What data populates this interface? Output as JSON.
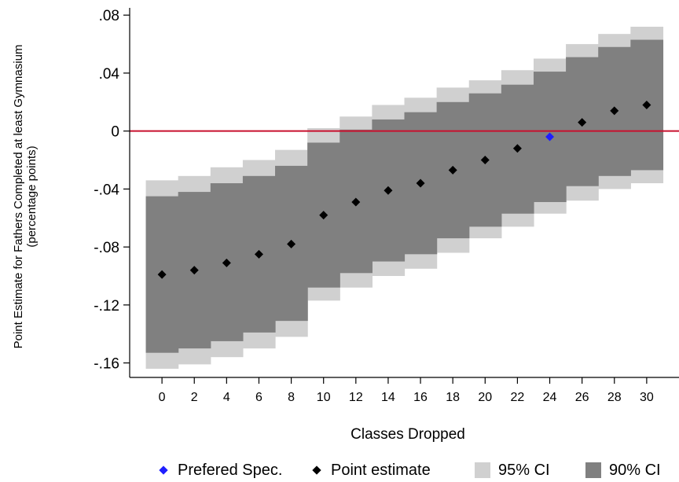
{
  "chart_data": {
    "type": "range_band_scatter",
    "xlabel": "Classes Dropped",
    "ylabel_line1": "Point Estimate for Fathers Completed at least Gymnasium",
    "ylabel_line2": "(percentage points)",
    "x": [
      0,
      2,
      4,
      6,
      8,
      10,
      12,
      14,
      16,
      18,
      20,
      22,
      24,
      26,
      28,
      30
    ],
    "x_ticks": [
      "0",
      "2",
      "4",
      "6",
      "8",
      "10",
      "12",
      "14",
      "16",
      "18",
      "20",
      "22",
      "24",
      "26",
      "28",
      "30"
    ],
    "xlim": [
      -2,
      32
    ],
    "ylim": [
      -0.17,
      0.085
    ],
    "y_ticks": [
      0.08,
      0.04,
      0,
      -0.04,
      -0.08,
      -0.12,
      -0.16
    ],
    "y_tick_labels": [
      ".08",
      ".04",
      "0",
      "-.04",
      "-.08",
      "-.12",
      "-.16"
    ],
    "series": [
      {
        "name": "Point estimate",
        "values": [
          -0.099,
          -0.096,
          -0.091,
          -0.085,
          -0.078,
          -0.058,
          -0.049,
          -0.041,
          -0.036,
          -0.027,
          -0.02,
          -0.012,
          null,
          0.006,
          0.014,
          0.018
        ]
      },
      {
        "name": "Prefered Spec.",
        "points": [
          {
            "x": 24,
            "y": -0.004
          }
        ]
      },
      {
        "name": "95% CI",
        "lower": [
          -0.164,
          -0.161,
          -0.156,
          -0.15,
          -0.142,
          -0.117,
          -0.108,
          -0.1,
          -0.095,
          -0.084,
          -0.074,
          -0.066,
          -0.057,
          -0.048,
          -0.04,
          -0.036
        ],
        "upper": [
          -0.034,
          -0.031,
          -0.025,
          -0.02,
          -0.013,
          0.002,
          0.01,
          0.018,
          0.023,
          0.03,
          0.035,
          0.042,
          0.05,
          0.06,
          0.067,
          0.072
        ]
      },
      {
        "name": "90% CI",
        "lower": [
          -0.153,
          -0.15,
          -0.145,
          -0.139,
          -0.131,
          -0.108,
          -0.098,
          -0.09,
          -0.085,
          -0.074,
          -0.066,
          -0.057,
          -0.049,
          -0.038,
          -0.031,
          -0.027
        ],
        "upper": [
          -0.045,
          -0.042,
          -0.036,
          -0.031,
          -0.024,
          -0.008,
          0.001,
          0.008,
          0.013,
          0.02,
          0.026,
          0.032,
          0.041,
          0.051,
          0.058,
          0.063
        ]
      }
    ],
    "reference_line": {
      "y": 0,
      "color": "#c8102e"
    },
    "colors": {
      "ci95": "#d0d0d0",
      "ci90": "#808080",
      "point": "#000000",
      "preferred": "#1f1fff",
      "axis": "#000000"
    },
    "legend": {
      "position": "bottom",
      "items": [
        {
          "label": "Prefered Spec.",
          "kind": "diamond",
          "color": "#1f1fff"
        },
        {
          "label": "Point estimate",
          "kind": "diamond",
          "color": "#000000"
        },
        {
          "label": "95% CI",
          "kind": "box",
          "color": "#d0d0d0"
        },
        {
          "label": "90% CI",
          "kind": "box",
          "color": "#808080"
        }
      ]
    }
  }
}
